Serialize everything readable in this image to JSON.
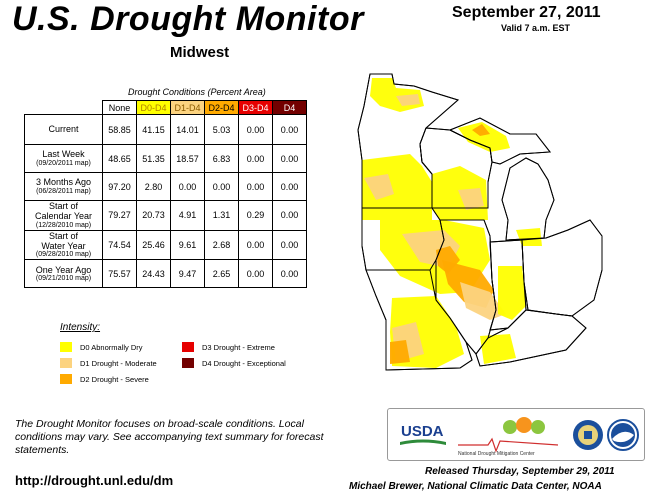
{
  "header": {
    "title": "U.S. Drought Monitor",
    "region": "Midwest",
    "date": "September 27, 2011",
    "valid": "Valid 7 a.m. EST"
  },
  "table": {
    "caption": "Drought Conditions (Percent Area)",
    "columns": [
      "None",
      "D0-D4",
      "D1-D4",
      "D2-D4",
      "D3-D4",
      "D4"
    ],
    "column_colors": [
      "#ffffff",
      "#ffff00",
      "#fcd37f",
      "#ffaa00",
      "#e60000",
      "#730000"
    ],
    "column_text_colors": [
      "#000000",
      "#b08000",
      "#8a5a00",
      "#000000",
      "#ffffff",
      "#ffffff"
    ],
    "rows": [
      {
        "label": "Current",
        "sub": "",
        "values": [
          "58.85",
          "41.15",
          "14.01",
          "5.03",
          "0.00",
          "0.00"
        ]
      },
      {
        "label": "Last Week",
        "sub": "(09/20/2011 map)",
        "values": [
          "48.65",
          "51.35",
          "18.57",
          "6.83",
          "0.00",
          "0.00"
        ]
      },
      {
        "label": "3 Months Ago",
        "sub": "(06/28/2011 map)",
        "values": [
          "97.20",
          "2.80",
          "0.00",
          "0.00",
          "0.00",
          "0.00"
        ]
      },
      {
        "label": "Start of\nCalendar Year",
        "sub": "(12/28/2010 map)",
        "values": [
          "79.27",
          "20.73",
          "4.91",
          "1.31",
          "0.29",
          "0.00"
        ]
      },
      {
        "label": "Start of\nWater Year",
        "sub": "(09/28/2010 map)",
        "values": [
          "74.54",
          "25.46",
          "9.61",
          "2.68",
          "0.00",
          "0.00"
        ]
      },
      {
        "label": "One Year Ago",
        "sub": "(09/21/2010 map)",
        "values": [
          "75.57",
          "24.43",
          "9.47",
          "2.65",
          "0.00",
          "0.00"
        ]
      }
    ]
  },
  "legend": {
    "title": "Intensity:",
    "items": [
      {
        "label": "D0 Abnormally Dry",
        "color": "#ffff00"
      },
      {
        "label": "D1 Drought - Moderate",
        "color": "#fcd37f"
      },
      {
        "label": "D2 Drought - Severe",
        "color": "#ffaa00"
      },
      {
        "label": "D3 Drought - Extreme",
        "color": "#e60000"
      },
      {
        "label": "D4 Drought - Exceptional",
        "color": "#730000"
      }
    ]
  },
  "footer": {
    "note": "The Drought Monitor focuses on broad-scale conditions. Local conditions may vary. See accompanying text summary for forecast statements.",
    "url": "http://drought.unl.edu/dm",
    "released": "Released Thursday, September 29, 2011",
    "author": "Michael Brewer, National Climatic Data Center, NOAA"
  },
  "logos": {
    "usda": "USDA",
    "ndmc": "National Drought Mitigation Center"
  },
  "map_colors": {
    "none": "#ffffff",
    "d0": "#ffff00",
    "d1": "#fcd37f",
    "d2": "#ffaa00",
    "border": "#000000"
  }
}
